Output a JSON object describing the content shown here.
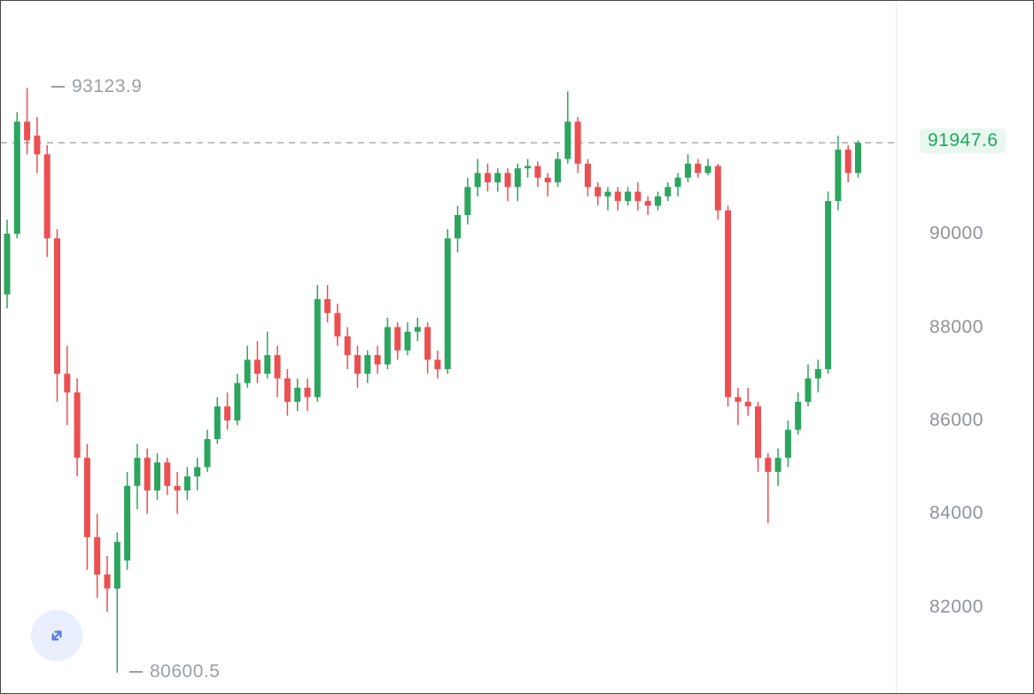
{
  "chart_data": {
    "type": "candlestick",
    "title": "",
    "legend": "none",
    "grid": "off",
    "candle_format": [
      "open",
      "high",
      "low",
      "close"
    ],
    "y_axis": {
      "ticks": [
        "90000",
        "88000",
        "86000",
        "84000",
        "82000"
      ],
      "visible_range": [
        80160,
        94990
      ]
    },
    "current_price": "91947.6",
    "high_annotation": "93123.9",
    "low_annotation": "80600.5",
    "colors": {
      "up": "#2ca55e",
      "down": "#ec4f52",
      "current_price_text": "#1ea75f",
      "current_price_bg": "#e9f8ef",
      "axis_text": "#8f9398",
      "annotation_text": "#9ba0a5",
      "dashed_line": "#a3a6aa",
      "fab_bg": "#e9effc",
      "fab_icon": "#5b7be2"
    },
    "candles": [
      [
        88700,
        90300,
        88400,
        90000
      ],
      [
        90000,
        92600,
        89900,
        92400
      ],
      [
        92400,
        93123.9,
        91700,
        92000
      ],
      [
        92100,
        92500,
        91300,
        91700
      ],
      [
        91700,
        91900,
        89500,
        89900
      ],
      [
        89900,
        90100,
        86400,
        87000
      ],
      [
        87000,
        87600,
        85900,
        86600
      ],
      [
        86600,
        86900,
        84800,
        85200
      ],
      [
        85200,
        85500,
        82800,
        83500
      ],
      [
        83500,
        84000,
        82200,
        82700
      ],
      [
        82700,
        83100,
        81900,
        82400
      ],
      [
        82400,
        83600,
        80600.5,
        83400
      ],
      [
        83000,
        84900,
        82800,
        84600
      ],
      [
        84600,
        85500,
        84100,
        85200
      ],
      [
        85200,
        85400,
        84000,
        84500
      ],
      [
        84500,
        85300,
        84300,
        85100
      ],
      [
        85100,
        85200,
        84400,
        84600
      ],
      [
        84600,
        84900,
        84000,
        84500
      ],
      [
        84500,
        85000,
        84300,
        84800
      ],
      [
        84800,
        85200,
        84500,
        85000
      ],
      [
        85000,
        85800,
        84900,
        85600
      ],
      [
        85600,
        86500,
        85500,
        86300
      ],
      [
        86300,
        86600,
        85800,
        86000
      ],
      [
        86000,
        87000,
        85900,
        86800
      ],
      [
        86800,
        87600,
        86700,
        87300
      ],
      [
        87300,
        87700,
        86800,
        87000
      ],
      [
        87000,
        87900,
        86900,
        87400
      ],
      [
        87400,
        87600,
        86500,
        86900
      ],
      [
        86900,
        87100,
        86100,
        86400
      ],
      [
        86400,
        86900,
        86200,
        86700
      ],
      [
        86700,
        86900,
        86200,
        86500
      ],
      [
        86500,
        88900,
        86400,
        88600
      ],
      [
        88600,
        88900,
        88100,
        88300
      ],
      [
        88300,
        88500,
        87600,
        87800
      ],
      [
        87800,
        88000,
        87100,
        87400
      ],
      [
        87400,
        87600,
        86700,
        87000
      ],
      [
        87000,
        87500,
        86800,
        87400
      ],
      [
        87400,
        87600,
        87000,
        87200
      ],
      [
        87200,
        88200,
        87100,
        88000
      ],
      [
        88000,
        88100,
        87300,
        87500
      ],
      [
        87500,
        88100,
        87400,
        87900
      ],
      [
        87900,
        88200,
        87700,
        88000
      ],
      [
        88000,
        88100,
        87000,
        87300
      ],
      [
        87300,
        87500,
        86900,
        87100
      ],
      [
        87100,
        90100,
        87000,
        89900
      ],
      [
        89900,
        90600,
        89600,
        90400
      ],
      [
        90400,
        91200,
        90200,
        91000
      ],
      [
        91000,
        91600,
        90800,
        91300
      ],
      [
        91300,
        91500,
        90900,
        91100
      ],
      [
        91100,
        91400,
        90900,
        91300
      ],
      [
        91300,
        91400,
        90700,
        91000
      ],
      [
        91000,
        91500,
        90700,
        91400
      ],
      [
        91400,
        91600,
        91200,
        91450
      ],
      [
        91450,
        91550,
        91000,
        91200
      ],
      [
        91200,
        91300,
        90800,
        91100
      ],
      [
        91100,
        91750,
        91000,
        91600
      ],
      [
        91600,
        93050,
        91500,
        92400
      ],
      [
        92400,
        92500,
        91300,
        91500
      ],
      [
        91500,
        91600,
        90800,
        91000
      ],
      [
        91000,
        91100,
        90600,
        90800
      ],
      [
        90800,
        91000,
        90500,
        90900
      ],
      [
        90900,
        91000,
        90500,
        90700
      ],
      [
        90700,
        91000,
        90600,
        90900
      ],
      [
        90900,
        91100,
        90500,
        90700
      ],
      [
        90700,
        90800,
        90400,
        90600
      ],
      [
        90600,
        90900,
        90500,
        90800
      ],
      [
        90800,
        91100,
        90700,
        91000
      ],
      [
        91000,
        91300,
        90800,
        91200
      ],
      [
        91200,
        91700,
        91100,
        91500
      ],
      [
        91500,
        91600,
        91200,
        91300
      ],
      [
        91300,
        91600,
        91250,
        91450
      ],
      [
        91450,
        91500,
        90300,
        90500
      ],
      [
        90500,
        90600,
        86300,
        86500
      ],
      [
        86500,
        86700,
        85900,
        86400
      ],
      [
        86400,
        86700,
        86100,
        86300
      ],
      [
        86300,
        86400,
        84900,
        85200
      ],
      [
        85200,
        85300,
        83800,
        84900
      ],
      [
        84900,
        85400,
        84600,
        85200
      ],
      [
        85200,
        86000,
        85000,
        85800
      ],
      [
        85800,
        86600,
        85700,
        86400
      ],
      [
        86400,
        87200,
        86300,
        86900
      ],
      [
        86900,
        87300,
        86600,
        87100
      ],
      [
        87100,
        90900,
        87000,
        90700
      ],
      [
        90700,
        92100,
        90500,
        91800
      ],
      [
        91800,
        91900,
        91100,
        91300
      ],
      [
        91300,
        92000,
        91200,
        91947.6
      ]
    ]
  },
  "controls": {
    "expand_icon": "expand-diagonal-arrows"
  }
}
